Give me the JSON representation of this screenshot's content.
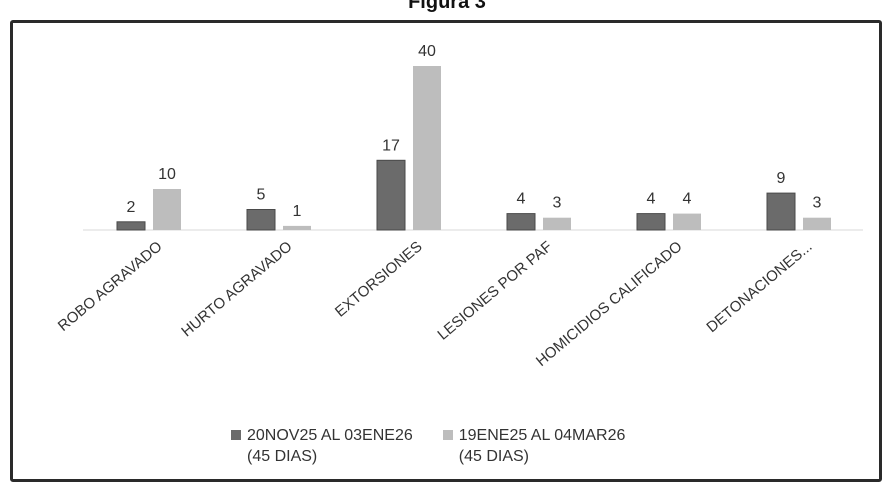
{
  "figure_title": "Figura 3",
  "chart_data": {
    "type": "bar",
    "categories": [
      "ROBO AGRAVADO",
      "HURTO AGRAVADO",
      "EXTORSIONES",
      "LESIONES POR PAF",
      "HOMICIDIOS CALIFICADO",
      "DETONACIONES..."
    ],
    "series": [
      {
        "name": "20NOV25 AL 03ENE26 (45 DIAS)",
        "name_lines": [
          "20NOV25 AL 03ENE26",
          "(45 DIAS)"
        ],
        "values": [
          2,
          5,
          17,
          4,
          4,
          9
        ],
        "color": "#6b6b6b"
      },
      {
        "name": "19ENE25 AL 04MAR26 (45 DIAS)",
        "name_lines": [
          "19ENE25 AL 04MAR26",
          "(45 DIAS)"
        ],
        "values": [
          10,
          1,
          40,
          3,
          4,
          3
        ],
        "color": "#bdbdbd"
      }
    ],
    "data_labels": true,
    "xlabel": "",
    "ylabel": "",
    "ylim": [
      0,
      40
    ],
    "grid": false,
    "legend_position": "bottom"
  }
}
